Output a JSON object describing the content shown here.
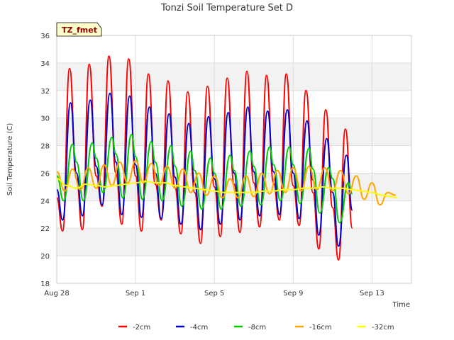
{
  "chart_data": {
    "type": "line",
    "title": "Tonzi Soil Temperature Set D",
    "xlabel": "Time",
    "ylabel": "Soil Temperature (C)",
    "badge": "TZ_fmet",
    "x_domain_days": [
      0,
      18
    ],
    "ylim": [
      18,
      36
    ],
    "yticks": [
      18,
      20,
      22,
      24,
      26,
      28,
      30,
      32,
      34,
      36
    ],
    "xticks": [
      {
        "day": 0,
        "label": "Aug 28"
      },
      {
        "day": 4,
        "label": "Sep 1"
      },
      {
        "day": 8,
        "label": "Sep 5"
      },
      {
        "day": 12,
        "label": "Sep 9"
      },
      {
        "day": 16,
        "label": "Sep 13"
      }
    ],
    "grid": true,
    "legend_position": "bottom",
    "series": [
      {
        "name": "-2cm",
        "color": "#ff0000",
        "x": [
          0.0,
          0.3,
          0.65,
          1.0,
          1.3,
          1.65,
          2.0,
          2.3,
          2.65,
          3.0,
          3.3,
          3.65,
          4.0,
          4.3,
          4.65,
          5.0,
          5.3,
          5.65,
          6.0,
          6.3,
          6.65,
          7.0,
          7.3,
          7.65,
          8.0,
          8.3,
          8.65,
          9.0,
          9.3,
          9.65,
          10.0,
          10.3,
          10.65,
          11.0,
          11.3,
          11.65,
          12.0,
          12.3,
          12.65,
          13.0,
          13.3,
          13.65,
          14.0,
          14.3,
          14.65,
          15.0,
          15.3,
          15.65,
          16.0,
          16.3,
          16.65,
          17.0,
          17.3
        ],
        "y": [
          24.2,
          21.8,
          33.6,
          25.6,
          21.9,
          33.9,
          25.8,
          23.6,
          34.5,
          26.0,
          22.3,
          34.3,
          25.8,
          21.8,
          33.2,
          25.2,
          22.6,
          32.7,
          24.9,
          21.6,
          31.9,
          24.6,
          20.9,
          32.3,
          25.0,
          21.4,
          32.9,
          25.2,
          21.7,
          33.4,
          25.3,
          22.1,
          33.1,
          25.3,
          22.6,
          33.2,
          25.1,
          22.2,
          32.0,
          24.6,
          20.5,
          30.6,
          23.5,
          19.7,
          29.2,
          22.0,
          null,
          null,
          null,
          null,
          null,
          null,
          null
        ]
      },
      {
        "name": "-4cm",
        "color": "#0000cc",
        "x": [
          0.0,
          0.3,
          0.7,
          1.0,
          1.3,
          1.7,
          2.0,
          2.3,
          2.7,
          3.0,
          3.3,
          3.7,
          4.0,
          4.3,
          4.7,
          5.0,
          5.3,
          5.7,
          6.0,
          6.3,
          6.7,
          7.0,
          7.3,
          7.7,
          8.0,
          8.3,
          8.7,
          9.0,
          9.3,
          9.7,
          10.0,
          10.3,
          10.7,
          11.0,
          11.3,
          11.7,
          12.0,
          12.3,
          12.7,
          13.0,
          13.3,
          13.7,
          14.0,
          14.3,
          14.7,
          15.0,
          15.3,
          15.7,
          16.0,
          16.3,
          16.7,
          17.0,
          17.3
        ],
        "y": [
          24.8,
          22.6,
          31.1,
          26.0,
          22.9,
          31.3,
          26.5,
          23.7,
          31.8,
          26.8,
          23.0,
          31.6,
          26.6,
          22.8,
          30.8,
          26.0,
          22.7,
          30.3,
          25.7,
          22.3,
          29.6,
          25.3,
          21.9,
          30.1,
          25.6,
          22.3,
          30.4,
          26.0,
          22.6,
          30.8,
          26.1,
          22.9,
          30.5,
          26.1,
          23.0,
          30.6,
          26.0,
          22.7,
          29.8,
          25.5,
          21.5,
          28.5,
          24.6,
          20.7,
          27.3,
          23.3,
          null,
          null,
          null,
          null,
          null,
          null,
          null
        ]
      },
      {
        "name": "-8cm",
        "color": "#00cc00",
        "x": [
          0.0,
          0.35,
          0.8,
          1.0,
          1.35,
          1.8,
          2.0,
          2.35,
          2.8,
          3.0,
          3.35,
          3.8,
          4.0,
          4.35,
          4.8,
          5.0,
          5.35,
          5.8,
          6.0,
          6.35,
          6.8,
          7.0,
          7.35,
          7.8,
          8.0,
          8.35,
          8.8,
          9.0,
          9.35,
          9.8,
          10.0,
          10.35,
          10.8,
          11.0,
          11.35,
          11.8,
          12.0,
          12.35,
          12.8,
          13.0,
          13.35,
          13.8,
          14.0,
          14.35,
          14.8,
          15.0,
          15.35,
          15.8,
          16.0,
          16.35,
          16.8,
          17.0,
          17.3
        ],
        "y": [
          25.8,
          24.0,
          28.1,
          26.8,
          24.0,
          28.2,
          27.1,
          24.6,
          28.6,
          27.4,
          24.2,
          28.8,
          27.2,
          24.1,
          28.3,
          26.8,
          24.0,
          28.0,
          26.5,
          23.6,
          27.6,
          26.2,
          23.4,
          27.1,
          26.0,
          23.4,
          27.3,
          26.2,
          23.6,
          27.6,
          26.5,
          23.7,
          27.9,
          26.6,
          24.0,
          27.9,
          26.6,
          23.8,
          27.8,
          26.3,
          23.1,
          26.4,
          25.6,
          22.4,
          25.3,
          24.5,
          null,
          null,
          null,
          null,
          null,
          null,
          null
        ]
      },
      {
        "name": "-16cm",
        "color": "#ffa500",
        "x": [
          0.0,
          0.4,
          0.8,
          1.2,
          1.6,
          2.0,
          2.4,
          2.8,
          3.2,
          3.6,
          4.0,
          4.4,
          4.8,
          5.2,
          5.6,
          6.0,
          6.4,
          6.8,
          7.2,
          7.6,
          8.0,
          8.4,
          8.8,
          9.2,
          9.6,
          10.0,
          10.4,
          10.8,
          11.2,
          11.6,
          12.0,
          12.4,
          12.8,
          13.2,
          13.6,
          14.0,
          14.4,
          14.8,
          15.2,
          15.6,
          16.0,
          16.4,
          16.8,
          17.2,
          17.3
        ],
        "y": [
          26.1,
          24.7,
          26.3,
          24.8,
          26.4,
          24.9,
          26.6,
          25.1,
          26.8,
          25.3,
          26.9,
          25.3,
          26.7,
          25.1,
          26.5,
          24.9,
          26.3,
          24.6,
          26.0,
          24.4,
          25.8,
          24.2,
          25.6,
          24.2,
          25.8,
          24.3,
          26.0,
          24.5,
          26.2,
          24.6,
          26.4,
          24.7,
          26.5,
          24.8,
          26.4,
          24.7,
          26.2,
          24.5,
          25.8,
          24.1,
          25.3,
          23.7,
          24.6,
          24.4,
          null
        ]
      },
      {
        "name": "-32cm",
        "color": "#ffff00",
        "x": [
          0.0,
          0.5,
          1.0,
          1.5,
          2.0,
          2.5,
          3.0,
          3.5,
          4.0,
          4.5,
          5.0,
          5.5,
          6.0,
          6.5,
          7.0,
          7.5,
          8.0,
          8.5,
          9.0,
          9.5,
          10.0,
          10.5,
          11.0,
          11.5,
          12.0,
          12.5,
          13.0,
          13.5,
          14.0,
          14.5,
          15.0,
          15.5,
          16.0,
          16.5,
          17.0,
          17.3
        ],
        "y": [
          25.6,
          25.1,
          24.9,
          25.2,
          25.1,
          25.0,
          25.1,
          25.2,
          25.3,
          25.4,
          25.3,
          25.3,
          25.1,
          25.0,
          24.9,
          24.8,
          24.7,
          24.6,
          24.6,
          24.6,
          24.6,
          24.7,
          24.7,
          24.8,
          24.8,
          24.9,
          24.9,
          25.0,
          24.9,
          24.9,
          24.8,
          24.7,
          24.6,
          24.4,
          24.3,
          24.2
        ]
      }
    ]
  }
}
